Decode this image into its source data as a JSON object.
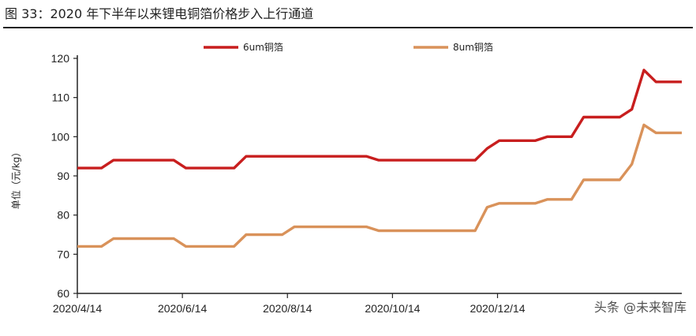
{
  "figure_title": "图 33：2020 年下半年以来锂电铜箔价格步入上行通道",
  "watermark": "头条 @未来智库",
  "colors": {
    "series_6um": "#c81e1e",
    "series_8um": "#d9925a",
    "axis": "#222222"
  },
  "chart_data": {
    "type": "line",
    "title": "",
    "xlabel": "",
    "ylabel": "单位（元/kg）",
    "ylim": [
      60,
      120
    ],
    "yticks": [
      60,
      70,
      80,
      90,
      100,
      110,
      120
    ],
    "x_start": "2020/4/14",
    "x_end": "2021/3/31",
    "xticks": [
      "2020/4/14",
      "2020/6/14",
      "2020/8/14",
      "2020/10/14",
      "2020/12/14"
    ],
    "legend_position": "top",
    "grid": false,
    "series": [
      {
        "name": "6um铜箔",
        "color": "#c81e1e",
        "points": [
          [
            "2020/4/14",
            92
          ],
          [
            "2020/4/28",
            92
          ],
          [
            "2020/5/5",
            94
          ],
          [
            "2020/5/12",
            94
          ],
          [
            "2020/6/9",
            94
          ],
          [
            "2020/6/16",
            92
          ],
          [
            "2020/7/14",
            92
          ],
          [
            "2020/7/21",
            95
          ],
          [
            "2020/9/29",
            95
          ],
          [
            "2020/10/6",
            94
          ],
          [
            "2020/12/1",
            94
          ],
          [
            "2020/12/8",
            97
          ],
          [
            "2020/12/15",
            99
          ],
          [
            "2021/1/5",
            99
          ],
          [
            "2021/1/12",
            100
          ],
          [
            "2021/1/26",
            100
          ],
          [
            "2021/2/2",
            105
          ],
          [
            "2021/2/23",
            105
          ],
          [
            "2021/3/2",
            107
          ],
          [
            "2021/3/9",
            117
          ],
          [
            "2021/3/16",
            114
          ],
          [
            "2021/3/31",
            114
          ]
        ]
      },
      {
        "name": "8um铜箔",
        "color": "#d9925a",
        "points": [
          [
            "2020/4/14",
            72
          ],
          [
            "2020/4/28",
            72
          ],
          [
            "2020/5/5",
            74
          ],
          [
            "2020/5/12",
            74
          ],
          [
            "2020/6/9",
            74
          ],
          [
            "2020/6/16",
            72
          ],
          [
            "2020/7/14",
            72
          ],
          [
            "2020/7/21",
            75
          ],
          [
            "2020/8/11",
            75
          ],
          [
            "2020/8/18",
            77
          ],
          [
            "2020/9/29",
            77
          ],
          [
            "2020/10/6",
            76
          ],
          [
            "2020/12/1",
            76
          ],
          [
            "2020/12/8",
            82
          ],
          [
            "2020/12/15",
            83
          ],
          [
            "2021/1/5",
            83
          ],
          [
            "2021/1/12",
            84
          ],
          [
            "2021/1/26",
            84
          ],
          [
            "2021/2/2",
            89
          ],
          [
            "2021/2/23",
            89
          ],
          [
            "2021/3/2",
            93
          ],
          [
            "2021/3/9",
            103
          ],
          [
            "2021/3/16",
            101
          ],
          [
            "2021/3/31",
            101
          ]
        ]
      }
    ]
  }
}
